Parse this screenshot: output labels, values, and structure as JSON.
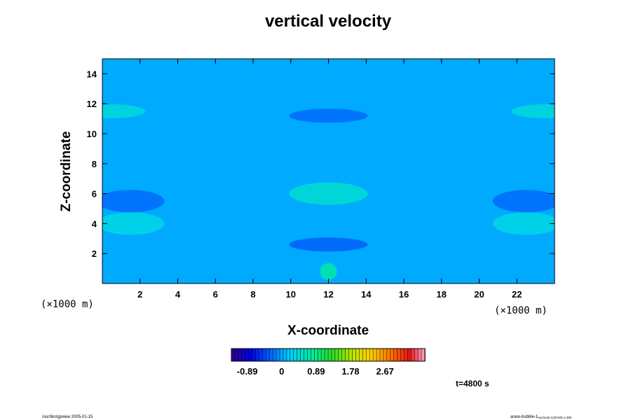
{
  "chart_data": {
    "type": "heatmap",
    "title": "vertical velocity",
    "xlabel": "X-coordinate",
    "ylabel": "Z-coordinate",
    "x_unit": "(×1000 m)",
    "y_unit": "(×1000 m)",
    "xlim": [
      0,
      24
    ],
    "ylim": [
      0,
      15
    ],
    "x_ticks": [
      2,
      4,
      6,
      8,
      10,
      12,
      14,
      16,
      18,
      20,
      22
    ],
    "y_ticks": [
      2,
      4,
      6,
      8,
      10,
      12,
      14
    ],
    "colorbar": {
      "tick_labels": [
        "-0.89",
        "0",
        "0.89",
        "1.78",
        "2.67"
      ],
      "tick_values": [
        -0.89,
        0,
        0.89,
        1.78,
        2.67
      ],
      "range": [
        -1.3,
        3.7
      ]
    },
    "time_label": "t=4800 s",
    "features": [
      {
        "x": 12,
        "z": 0.8,
        "value": 0.7
      },
      {
        "x": 12,
        "z": 6.0,
        "value": 0.45
      },
      {
        "x": 0.5,
        "z": 11.5,
        "value": 0.4
      },
      {
        "x": 23.5,
        "z": 11.5,
        "value": 0.4
      },
      {
        "x": 1.5,
        "z": 4.0,
        "value": 0.35
      },
      {
        "x": 22.5,
        "z": 4.0,
        "value": 0.35
      },
      {
        "x": 12,
        "z": 11.2,
        "value": -0.25
      },
      {
        "x": 12,
        "z": 2.6,
        "value": -0.3
      },
      {
        "x": 1.5,
        "z": 5.5,
        "value": -0.25
      },
      {
        "x": 22.5,
        "z": 5.5,
        "value": -0.25
      }
    ]
  },
  "footer": {
    "left": "/usr/bin/gpview 2005-01-15",
    "right_main": "arare-bubble-1",
    "right_sub": "nocloud.nc@Vel2,t=480"
  }
}
